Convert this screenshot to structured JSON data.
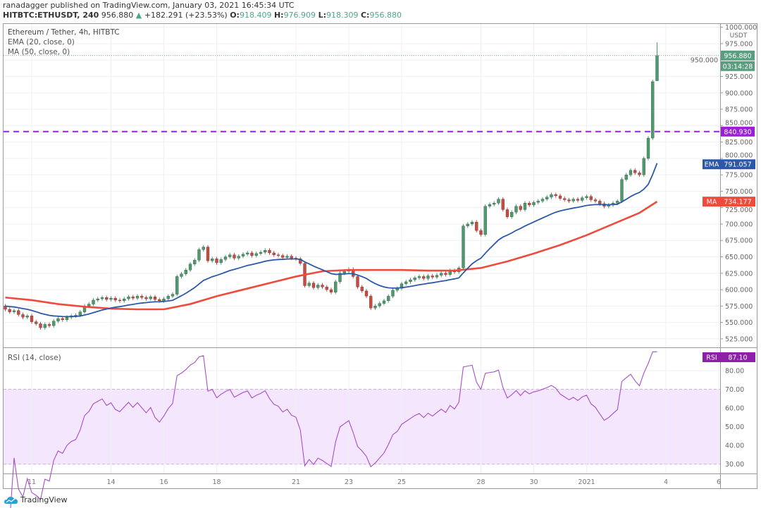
{
  "header": {
    "publisher_line": "ranadagger published on TradingView.com, January 03, 2021 16:45:34 UTC",
    "symbol": "HITBTC:ETHUSDT, 240",
    "last": "956.880",
    "change": "+182.291 (+23.53%)",
    "o_label": "O:",
    "o": "918.409",
    "h_label": "H:",
    "h": "976.909",
    "l_label": "L:",
    "l": "918.309",
    "c_label": "C:",
    "c": "956.880"
  },
  "legend": {
    "title": "Ethereum / Tether, 4h, HITBTC",
    "ema": "EMA (20, close, 0)",
    "ma": "MA (50, close, 0)",
    "rsi": "RSI (14, close)"
  },
  "footer": {
    "brand": "TradingView"
  },
  "colors": {
    "up": "#4c9b6e",
    "down": "#c94a3f",
    "ema": "#2b58a8",
    "ma": "#ef4b3d",
    "rsi": "#a64fc8",
    "level": "#9a1fd6",
    "rsi_band": "#f4e6fc"
  },
  "chart_data": {
    "type": "candlestick",
    "interval": "4h",
    "start": "2020-12-10T00:00",
    "first_open": 575,
    "closes": [
      570,
      566,
      568,
      562,
      558,
      560,
      551,
      548,
      542,
      547,
      545,
      552,
      556,
      554,
      558,
      560,
      561,
      566,
      575,
      578,
      584,
      586,
      588,
      585,
      587,
      584,
      583,
      586,
      589,
      587,
      590,
      588,
      586,
      589,
      585,
      583,
      586,
      590,
      593,
      620,
      624,
      630,
      639,
      645,
      661,
      665,
      644,
      647,
      641,
      646,
      650,
      653,
      648,
      651,
      654,
      656,
      652,
      655,
      657,
      660,
      656,
      653,
      652,
      649,
      651,
      648,
      647,
      640,
      606,
      610,
      603,
      607,
      604,
      600,
      596,
      612,
      625,
      628,
      631,
      620,
      604,
      598,
      590,
      572,
      575,
      579,
      583,
      590,
      599,
      602,
      609,
      612,
      615,
      618,
      620,
      617,
      621,
      619,
      622,
      625,
      623,
      629,
      627,
      633,
      697,
      700,
      703,
      690,
      684,
      727,
      730,
      732,
      738,
      722,
      711,
      718,
      727,
      722,
      732,
      729,
      733,
      735,
      738,
      741,
      745,
      743,
      739,
      737,
      735,
      738,
      736,
      740,
      742,
      737,
      735,
      731,
      727,
      729,
      732,
      735,
      768,
      775,
      782,
      778,
      775,
      800,
      831,
      917,
      956.88
    ],
    "last_candle": {
      "o": 918.409,
      "h": 976.909,
      "l": 918.309,
      "c": 956.88
    },
    "ma50": [
      [
        "2020-12-10T00:00",
        588
      ],
      [
        "2020-12-11T00:00",
        584
      ],
      [
        "2020-12-12T00:00",
        578
      ],
      [
        "2020-12-13T00:00",
        574
      ],
      [
        "2020-12-14T00:00",
        571
      ],
      [
        "2020-12-15T00:00",
        570
      ],
      [
        "2020-12-16T00:00",
        570
      ],
      [
        "2020-12-17T00:00",
        578
      ],
      [
        "2020-12-18T00:00",
        590
      ],
      [
        "2020-12-19T00:00",
        600
      ],
      [
        "2020-12-20T00:00",
        610
      ],
      [
        "2020-12-21T00:00",
        620
      ],
      [
        "2020-12-22T00:00",
        628
      ],
      [
        "2020-12-23T00:00",
        630
      ],
      [
        "2020-12-24T00:00",
        630
      ],
      [
        "2020-12-25T00:00",
        630
      ],
      [
        "2020-12-26T00:00",
        629
      ],
      [
        "2020-12-27T00:00",
        629
      ],
      [
        "2020-12-28T00:00",
        633
      ],
      [
        "2020-12-29T00:00",
        643
      ],
      [
        "2020-12-30T00:00",
        655
      ],
      [
        "2020-12-31T00:00",
        668
      ],
      [
        "2021-01-01T00:00",
        683
      ],
      [
        "2021-01-02T00:00",
        700
      ],
      [
        "2021-01-03T00:00",
        717
      ],
      [
        "2021-01-03T16:00",
        734.177
      ]
    ],
    "price_axis": {
      "min": 512,
      "max": 1005,
      "ticks": [
        "525.000",
        "550.000",
        "575.000",
        "600.000",
        "625.000",
        "650.000",
        "675.000",
        "700.000",
        "725.000",
        "750.000",
        "775.000",
        "800.000",
        "825.000",
        "850.000",
        "875.000",
        "900.000",
        "925.000",
        "950.000",
        "975.000",
        "1000.000"
      ],
      "unit": "USDT"
    },
    "rsi_axis": {
      "min": 25,
      "max": 92,
      "ticks": [
        "30.00",
        "40.00",
        "50.00",
        "60.00",
        "70.00",
        "80.00"
      ],
      "band": [
        30,
        70
      ]
    },
    "x_ticks": [
      [
        "11",
        "2020-12-11T00:00"
      ],
      [
        "14",
        "2020-12-14T00:00"
      ],
      [
        "16",
        "2020-12-16T00:00"
      ],
      [
        "18",
        "2020-12-18T00:00"
      ],
      [
        "21",
        "2020-12-21T00:00"
      ],
      [
        "23",
        "2020-12-23T00:00"
      ],
      [
        "25",
        "2020-12-25T00:00"
      ],
      [
        "28",
        "2020-12-28T00:00"
      ],
      [
        "30",
        "2020-12-30T00:00"
      ],
      [
        "2021",
        "2021-01-01T00:00"
      ],
      [
        "4",
        "2021-01-04T00:00"
      ],
      [
        "6",
        "2021-01-06T00:00"
      ]
    ],
    "horizontal_line": 840.93,
    "labels": {
      "price": "956.880",
      "countdown": "03:14:28",
      "level": "840.930",
      "ema_tag": "EMA",
      "ema": "791.057",
      "ma_tag": "MA",
      "ma": "734.177",
      "rsi_tag": "RSI",
      "rsi": "87.10"
    },
    "grid": true
  }
}
